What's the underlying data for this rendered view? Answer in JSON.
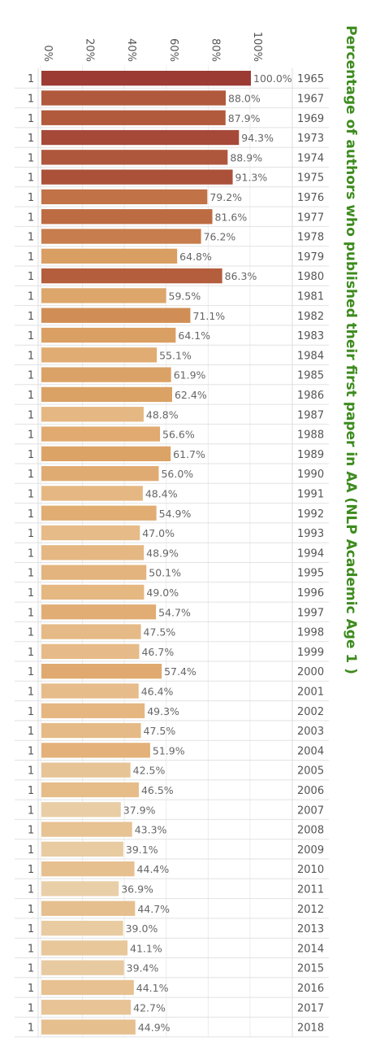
{
  "chart_data": {
    "type": "bar",
    "orientation": "horizontal",
    "title": "Percentage of authors who published their first paper in AA (NLP Academic Age 1 )",
    "row_header": "1",
    "x_ticks": [
      "0%",
      "20%",
      "40%",
      "60%",
      "80%",
      "100%"
    ],
    "xlim": [
      0,
      100
    ],
    "grid": true,
    "categories": [
      "1965",
      "1967",
      "1969",
      "1973",
      "1974",
      "1975",
      "1976",
      "1977",
      "1978",
      "1979",
      "1980",
      "1981",
      "1982",
      "1983",
      "1984",
      "1985",
      "1986",
      "1987",
      "1988",
      "1989",
      "1990",
      "1991",
      "1992",
      "1993",
      "1994",
      "1995",
      "1996",
      "1997",
      "1998",
      "1999",
      "2000",
      "2001",
      "2002",
      "2003",
      "2004",
      "2005",
      "2006",
      "2007",
      "2008",
      "2009",
      "2010",
      "2011",
      "2012",
      "2013",
      "2014",
      "2015",
      "2016",
      "2017",
      "2018"
    ],
    "values": [
      100.0,
      88.0,
      87.9,
      94.3,
      88.9,
      91.3,
      79.2,
      81.6,
      76.2,
      64.8,
      86.3,
      59.5,
      71.1,
      64.1,
      55.1,
      61.9,
      62.4,
      48.8,
      56.6,
      61.7,
      56.0,
      48.4,
      54.9,
      47.0,
      48.9,
      50.1,
      49.0,
      54.7,
      47.5,
      46.7,
      57.4,
      46.4,
      49.3,
      47.5,
      51.9,
      42.5,
      46.5,
      37.9,
      43.3,
      39.1,
      44.4,
      36.9,
      44.7,
      39.0,
      41.1,
      39.4,
      44.1,
      42.7,
      44.9
    ],
    "value_labels": [
      "100.0%",
      "88.0%",
      "87.9%",
      "94.3%",
      "88.9%",
      "91.3%",
      "79.2%",
      "81.6%",
      "76.2%",
      "64.8%",
      "86.3%",
      "59.5%",
      "71.1%",
      "64.1%",
      "55.1%",
      "61.9%",
      "62.4%",
      "48.8%",
      "56.6%",
      "61.7%",
      "56.0%",
      "48.4%",
      "54.9%",
      "47.0%",
      "48.9%",
      "50.1%",
      "49.0%",
      "54.7%",
      "47.5%",
      "46.7%",
      "57.4%",
      "46.4%",
      "49.3%",
      "47.5%",
      "51.9%",
      "42.5%",
      "46.5%",
      "37.9%",
      "43.3%",
      "39.1%",
      "44.4%",
      "36.9%",
      "44.7%",
      "39.0%",
      "41.1%",
      "39.4%",
      "44.1%",
      "42.7%",
      "44.9%"
    ],
    "color_scale": [
      "#ead3ae",
      "#e4b27a",
      "#d79a5d",
      "#b9643f",
      "#9b3b34"
    ]
  }
}
